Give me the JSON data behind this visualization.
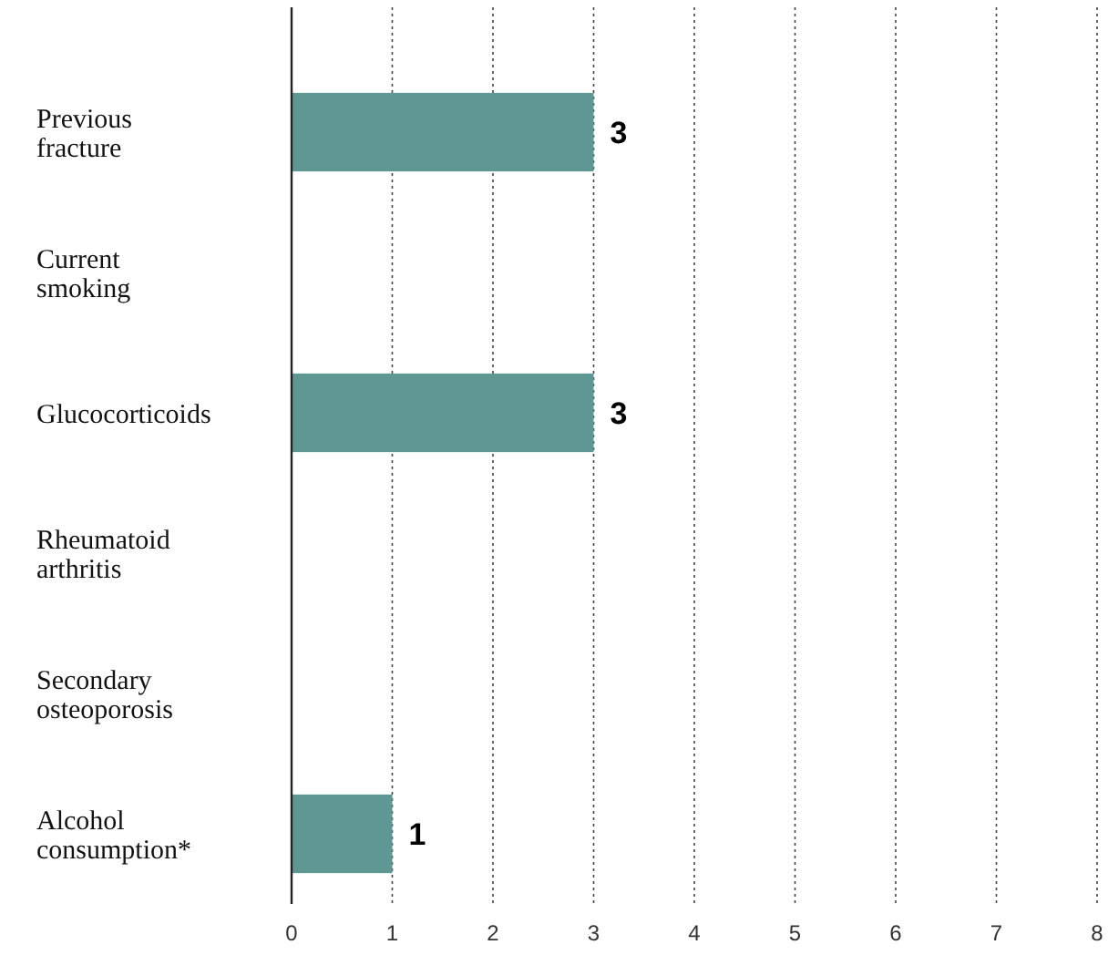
{
  "chart_data": {
    "type": "bar",
    "orientation": "horizontal",
    "categories": [
      "Previous fracture",
      "Current smoking",
      "Glucocorticoids",
      "Rheumatoid arthritis",
      "Secondary osteoporosis",
      "Alcohol consumption*"
    ],
    "values": [
      3,
      0,
      3,
      0,
      0,
      1
    ],
    "value_labels": [
      "3",
      null,
      "3",
      null,
      null,
      "1"
    ],
    "color": "#5f9892",
    "xlim": [
      0,
      8
    ],
    "xticks": [
      0,
      1,
      2,
      3,
      4,
      5,
      6,
      7,
      8
    ],
    "grid": "x",
    "line_style": "dotted"
  }
}
